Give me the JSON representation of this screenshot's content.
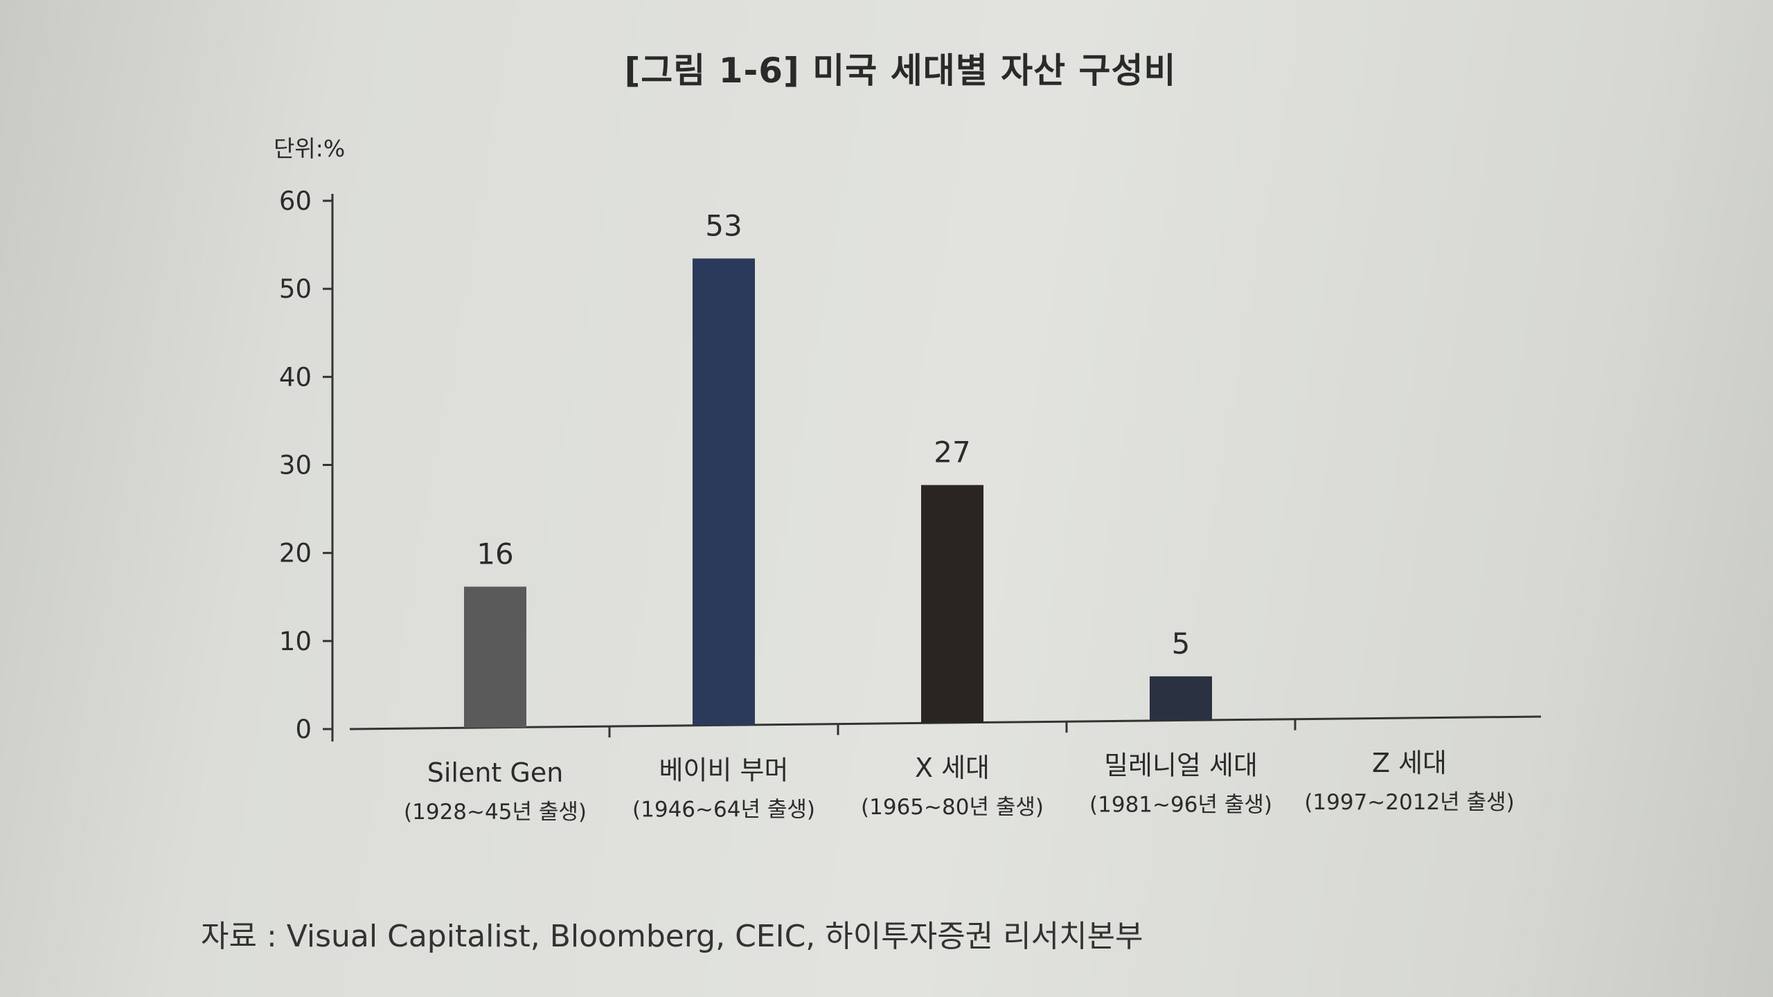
{
  "page": {
    "title": "[그림 1-6] 미국 세대별 자산 구성비",
    "unit_label": "단위:%",
    "source": "자료 : Visual Capitalist, Bloomberg, CEIC, 하이투자증권 리서치본부"
  },
  "chart_data": {
    "type": "bar",
    "title": "[그림 1-6] 미국 세대별 자산 구성비",
    "ylabel": "단위:%",
    "ylim": [
      0,
      60
    ],
    "yticks": [
      0,
      10,
      20,
      30,
      40,
      50,
      60
    ],
    "grid": false,
    "categories": [
      {
        "name": "Silent Gen",
        "sub": "(1928~45년 출생)"
      },
      {
        "name": "베이비 부머",
        "sub": "(1946~64년 출생)"
      },
      {
        "name": "X 세대",
        "sub": "(1965~80년 출생)"
      },
      {
        "name": "밀레니얼 세대",
        "sub": "(1981~96년 출생)"
      },
      {
        "name": "Z 세대",
        "sub": "(1997~2012년 출생)"
      }
    ],
    "values": [
      16,
      53,
      27,
      5,
      0
    ],
    "data_labels": [
      "16",
      "53",
      "27",
      "5",
      ""
    ],
    "colors": [
      "#5a5a5a",
      "#2b3a5a",
      "#2a2523",
      "#2a3140",
      "#2a3140"
    ]
  }
}
